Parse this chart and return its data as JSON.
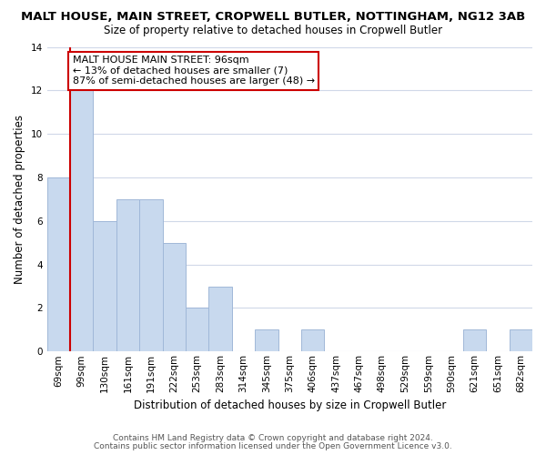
{
  "title": "MALT HOUSE, MAIN STREET, CROPWELL BUTLER, NOTTINGHAM, NG12 3AB",
  "subtitle": "Size of property relative to detached houses in Cropwell Butler",
  "xlabel": "Distribution of detached houses by size in Cropwell Butler",
  "ylabel": "Number of detached properties",
  "footer_line1": "Contains HM Land Registry data © Crown copyright and database right 2024.",
  "footer_line2": "Contains public sector information licensed under the Open Government Licence v3.0.",
  "bar_labels": [
    "69sqm",
    "99sqm",
    "130sqm",
    "161sqm",
    "191sqm",
    "222sqm",
    "253sqm",
    "283sqm",
    "314sqm",
    "345sqm",
    "375sqm",
    "406sqm",
    "437sqm",
    "467sqm",
    "498sqm",
    "529sqm",
    "559sqm",
    "590sqm",
    "621sqm",
    "651sqm",
    "682sqm"
  ],
  "bar_values": [
    8,
    12,
    6,
    7,
    7,
    5,
    2,
    3,
    0,
    1,
    0,
    1,
    0,
    0,
    0,
    0,
    0,
    0,
    1,
    0,
    1
  ],
  "bar_color": "#c8d9ee",
  "bar_edge_color": "#a0b8d8",
  "annotation_line1": "MALT HOUSE MAIN STREET: 96sqm",
  "annotation_line2": "← 13% of detached houses are smaller (7)",
  "annotation_line3": "87% of semi-detached houses are larger (48) →",
  "ylim": [
    0,
    14
  ],
  "yticks": [
    0,
    2,
    4,
    6,
    8,
    10,
    12,
    14
  ],
  "background_color": "#ffffff",
  "grid_color": "#d0d8e8",
  "red_line_color": "#cc0000",
  "title_fontsize": 9.5,
  "subtitle_fontsize": 8.5,
  "axis_label_fontsize": 8.5,
  "tick_fontsize": 7.5,
  "annotation_fontsize": 8.0,
  "footer_fontsize": 6.5,
  "footer_color": "#555555"
}
